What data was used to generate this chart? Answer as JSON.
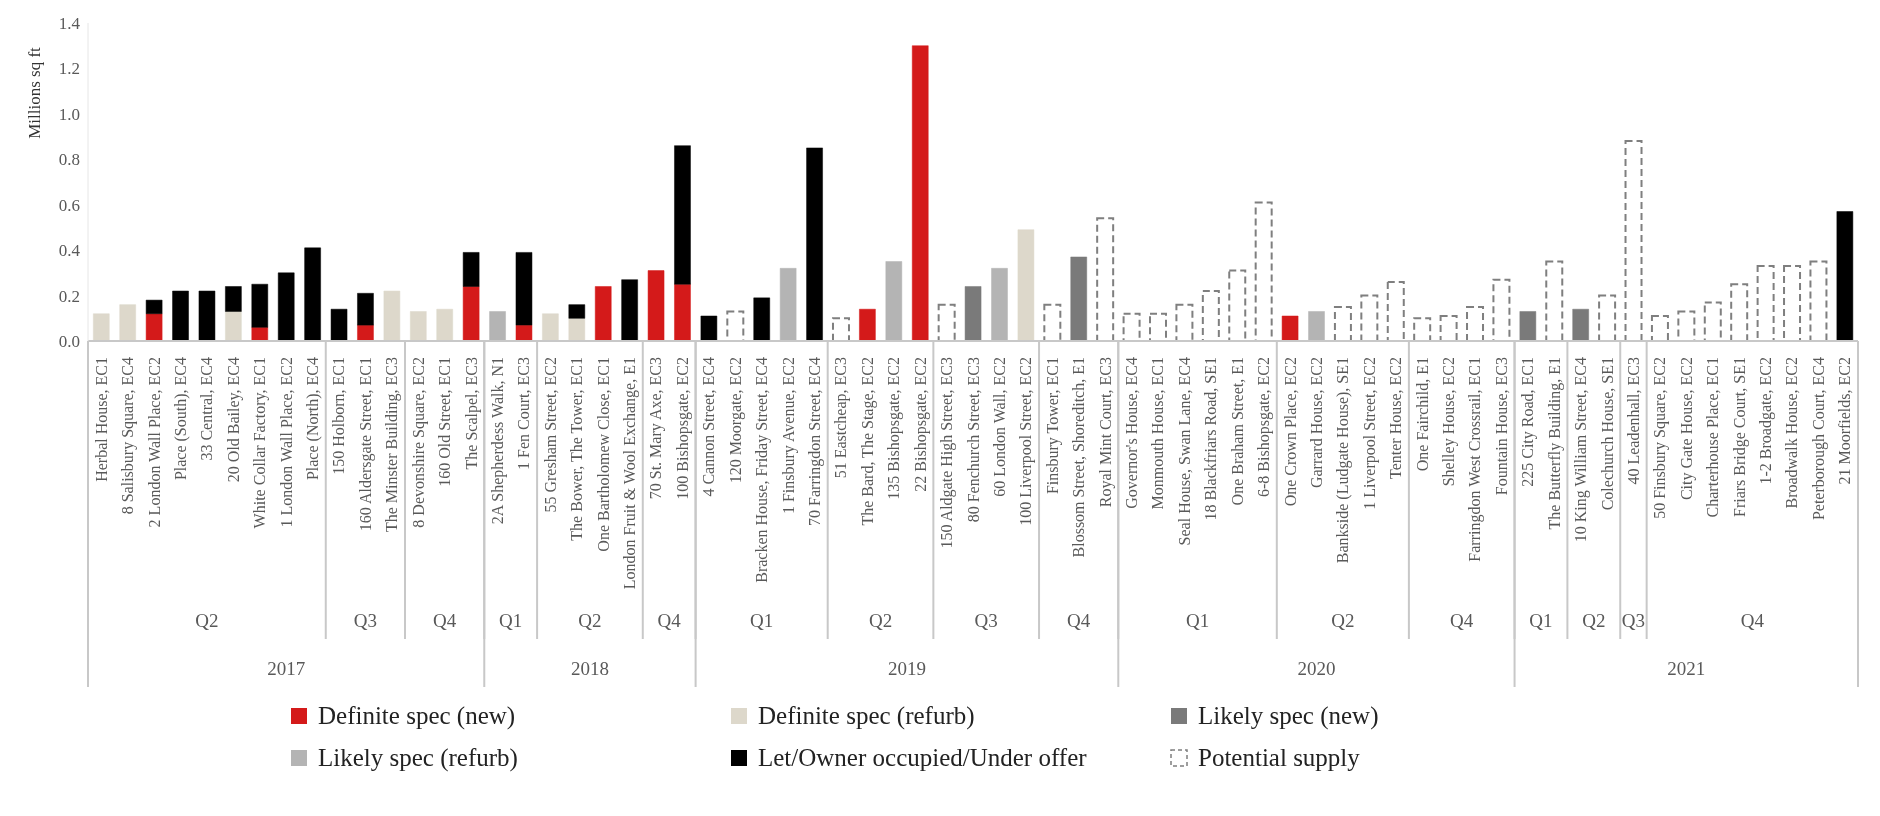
{
  "chart_data": {
    "type": "bar",
    "stacked": true,
    "ylabel": "Millions sq ft",
    "legend": "bottom",
    "ylim": [
      0,
      1.4
    ],
    "yticks": [
      {
        "value": 0,
        "label": "0.0"
      },
      {
        "value": 0.2,
        "label": "0.2"
      },
      {
        "value": 0.4,
        "label": "0.4"
      },
      {
        "value": 0.6,
        "label": "0.6"
      },
      {
        "value": 0.8,
        "label": "0.8"
      },
      {
        "value": 1.0,
        "label": "1.0"
      },
      {
        "value": 1.2,
        "label": "1.2"
      },
      {
        "value": 1.4,
        "label": "1.4"
      }
    ],
    "categories": [
      "Herbal House, EC1",
      "8 Salisbury Square, EC4",
      "2 London Wall Place, EC2",
      "Place (South), EC4",
      "33 Central, EC4",
      "20 Old Bailey, EC4",
      "White Collar Factory, EC1",
      "1 London Wall Place, EC2",
      "Place (North), EC4",
      "150 Holborn, EC1",
      "160 Aldersgate Street, EC1",
      "The Minster Building, EC3",
      "8 Devonshire Square, EC2",
      "160 Old Street, EC1",
      "The Scalpel, EC3",
      "2A Shepherdess Walk, N1",
      "1 Fen Court, EC3",
      "55 Gresham Street, EC2",
      "The Bower, The Tower, EC1",
      "One Bartholomew Close, EC1",
      "London Fruit & Wool Exchange, E1",
      "70 St. Mary Axe, EC3",
      "100 Bishopsgate, EC2",
      "4 Cannon Street, EC4",
      "120 Moorgate, EC2",
      "Bracken House, Friday Street, EC4",
      "1 Finsbury Avenue, EC2",
      "70 Farringdon Street, EC4",
      "51 Eastcheap, EC3",
      "The Bard, The Stage, EC2",
      "135 Bishopsgate, EC2",
      "22 Bishopsgate, EC2",
      "150 Aldgate High Street, EC3",
      "80 Fenchurch Street, EC3",
      "60 London Wall, EC2",
      "100 Liverpool Street, EC2",
      "Finsbury Tower, EC1",
      "Blossom Street, Shoreditch, E1",
      "Royal Mint Court, EC3",
      "Governor's House, EC4",
      "Monmouth House, EC1",
      "Seal House, Swan Lane, EC4",
      "18 Blackfriars Road, SE1",
      "One Braham Street, E1",
      "6-8 Bishopsgate, EC2",
      "One Crown Place, EC2",
      "Garrard House, EC2",
      "Bankside (Ludgate House), SE1",
      "1 Liverpool Street, EC2",
      "Tenter House, EC2",
      "One Fairchild, E1",
      "Shelley House, EC2",
      "Farringdon West Crossrail, EC1",
      "Fountain House, EC3",
      "225 City Road, EC1",
      "The Butterfly Building, E1",
      "10 King William Street, EC4",
      "Colechurch House, SE1",
      "40 Leadenhall, EC3",
      "50 Finsbury Square, EC2",
      "City Gate House, EC2",
      "Charterhouse Place, EC1",
      "Friars Bridge Court, SE1",
      "1-2 Broadgate, EC2",
      "Broadwalk House, EC2",
      "Peterborough Court, EC4",
      "21 Moorfields, EC2"
    ],
    "series": [
      {
        "name": "Definite spec (new)",
        "color": "#d41a1a",
        "values": [
          null,
          null,
          0.12,
          null,
          null,
          null,
          0.06,
          null,
          null,
          null,
          0.07,
          null,
          null,
          null,
          0.24,
          null,
          0.07,
          null,
          null,
          0.24,
          null,
          0.31,
          0.25,
          null,
          null,
          null,
          null,
          null,
          null,
          0.14,
          null,
          1.3,
          null,
          null,
          null,
          null,
          null,
          null,
          null,
          null,
          null,
          null,
          null,
          null,
          null,
          0.11,
          null,
          null,
          null,
          null,
          null,
          null,
          null,
          null,
          null,
          null,
          null,
          null,
          null,
          null,
          null,
          null,
          null,
          null,
          null,
          null,
          null
        ]
      },
      {
        "name": "Definite spec (refurb)",
        "color": "#ddd8cb",
        "values": [
          0.12,
          0.16,
          null,
          null,
          null,
          0.13,
          null,
          null,
          null,
          null,
          null,
          0.22,
          0.13,
          0.14,
          null,
          null,
          null,
          0.12,
          0.1,
          null,
          null,
          null,
          null,
          null,
          null,
          null,
          null,
          null,
          null,
          null,
          null,
          null,
          null,
          null,
          null,
          0.49,
          null,
          null,
          null,
          null,
          null,
          null,
          null,
          null,
          null,
          null,
          null,
          null,
          null,
          null,
          null,
          null,
          null,
          null,
          null,
          null,
          null,
          null,
          null,
          null,
          null,
          null,
          null,
          null,
          null,
          null,
          null
        ]
      },
      {
        "name": "Likely spec (new)",
        "color": "#7a7a7a",
        "values": [
          null,
          null,
          null,
          null,
          null,
          null,
          null,
          null,
          null,
          null,
          null,
          null,
          null,
          null,
          null,
          null,
          null,
          null,
          null,
          null,
          null,
          null,
          null,
          null,
          null,
          null,
          null,
          null,
          null,
          null,
          null,
          null,
          null,
          0.24,
          null,
          null,
          null,
          0.37,
          null,
          null,
          null,
          null,
          null,
          null,
          null,
          null,
          null,
          null,
          null,
          null,
          null,
          null,
          null,
          null,
          0.13,
          null,
          0.14,
          null,
          null,
          null,
          null,
          null,
          null,
          null,
          null,
          null,
          null
        ]
      },
      {
        "name": "Likely spec (refurb)",
        "color": "#b4b4b4",
        "values": [
          null,
          null,
          null,
          null,
          null,
          null,
          null,
          null,
          null,
          null,
          null,
          null,
          null,
          null,
          null,
          0.13,
          null,
          null,
          null,
          null,
          null,
          null,
          null,
          null,
          null,
          null,
          0.32,
          null,
          null,
          null,
          0.35,
          null,
          null,
          null,
          0.32,
          null,
          null,
          null,
          null,
          null,
          null,
          null,
          null,
          null,
          null,
          null,
          0.13,
          null,
          null,
          null,
          null,
          null,
          null,
          null,
          null,
          null,
          null,
          null,
          null,
          null,
          null,
          null,
          null,
          null,
          null,
          null,
          null
        ]
      },
      {
        "name": "Let/Owner occupied/Under offer",
        "color": "#000000",
        "values": [
          null,
          null,
          0.06,
          0.22,
          0.22,
          0.11,
          0.19,
          0.3,
          0.41,
          0.14,
          0.14,
          null,
          null,
          null,
          0.15,
          null,
          0.32,
          null,
          0.06,
          null,
          0.27,
          null,
          0.61,
          0.11,
          null,
          0.19,
          null,
          0.85,
          null,
          null,
          null,
          null,
          null,
          null,
          null,
          null,
          null,
          null,
          null,
          null,
          null,
          null,
          null,
          null,
          null,
          null,
          null,
          null,
          null,
          null,
          null,
          null,
          null,
          null,
          null,
          null,
          null,
          null,
          null,
          null,
          null,
          null,
          null,
          null,
          null,
          null,
          0.57
        ]
      },
      {
        "name": "Potential supply",
        "color": "#7f7f7f",
        "line_style": "dashed",
        "values": [
          null,
          null,
          null,
          null,
          null,
          null,
          null,
          null,
          null,
          null,
          null,
          null,
          null,
          null,
          null,
          null,
          null,
          null,
          null,
          null,
          null,
          null,
          null,
          null,
          0.13,
          null,
          null,
          null,
          0.1,
          null,
          null,
          null,
          0.16,
          null,
          null,
          null,
          0.16,
          null,
          0.54,
          0.12,
          0.12,
          0.16,
          0.22,
          0.31,
          0.61,
          null,
          null,
          0.15,
          0.2,
          0.26,
          0.1,
          0.11,
          0.15,
          0.27,
          null,
          0.35,
          null,
          0.2,
          0.88,
          0.11,
          0.13,
          0.17,
          0.25,
          0.33,
          0.33,
          0.35,
          null
        ]
      }
    ],
    "annotations": [
      "Q2",
      "Q3",
      "Q4",
      "Q1",
      "Q2",
      "Q4",
      "Q1",
      "Q2",
      "Q3",
      "Q4",
      "Q1",
      "Q2",
      "Q4",
      "Q1",
      "Q2",
      "Q3",
      "Q4",
      "2017",
      "2018",
      "2019",
      "2020",
      "2021"
    ]
  }
}
